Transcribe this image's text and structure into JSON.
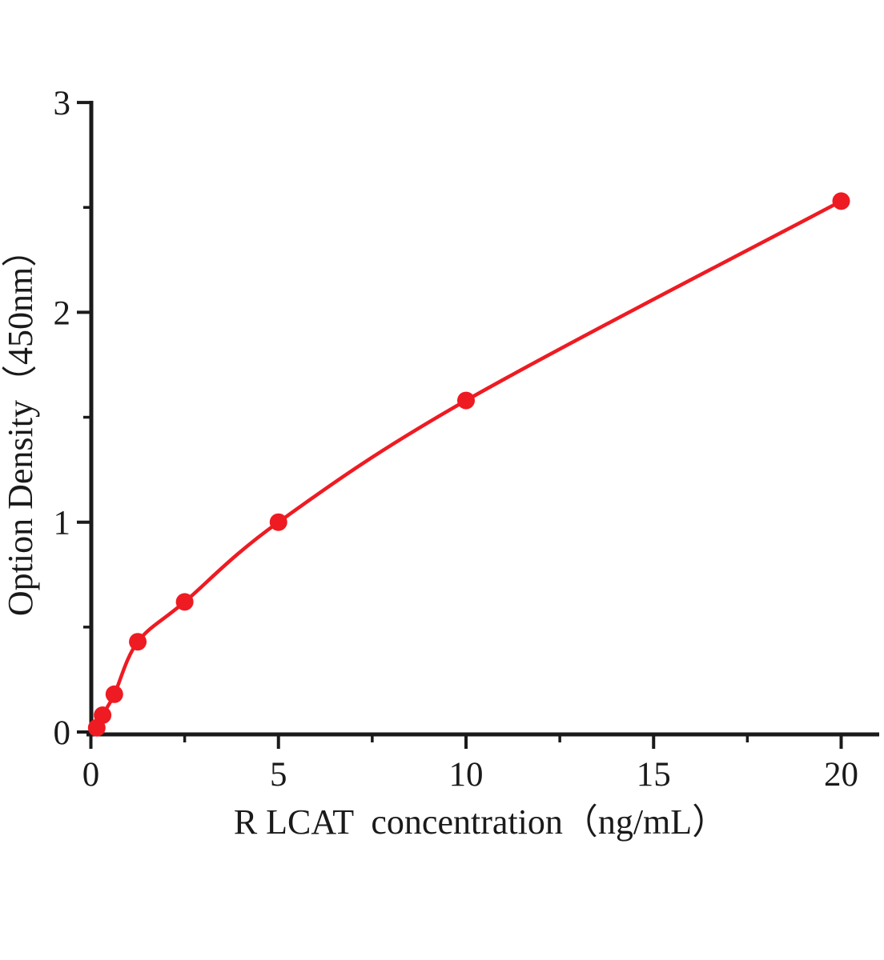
{
  "chart_data": {
    "type": "scatter",
    "title": "",
    "xlabel": "R LCAT  concentration（ng/mL）",
    "ylabel": "Option Density（450nm）",
    "x": [
      0.156,
      0.312,
      0.625,
      1.25,
      2.5,
      5,
      10,
      20
    ],
    "y": [
      0.02,
      0.08,
      0.18,
      0.43,
      0.62,
      1.0,
      1.58,
      2.53
    ],
    "xlim": [
      0,
      21
    ],
    "ylim": [
      0,
      3
    ],
    "x_major_ticks": [
      0,
      5,
      10,
      15,
      20
    ],
    "x_minor_ticks": [
      2.5,
      7.5,
      12.5,
      17.5
    ],
    "y_major_ticks": [
      0,
      1,
      2,
      3
    ],
    "y_minor_ticks": [
      0.5,
      1.5,
      2.5
    ],
    "grid": false,
    "legend": false,
    "curve_color": "#ee1b22",
    "marker_color": "#ee1b22",
    "axis_color": "#1a1a1a",
    "marker": "circle",
    "line_style": "smooth"
  }
}
